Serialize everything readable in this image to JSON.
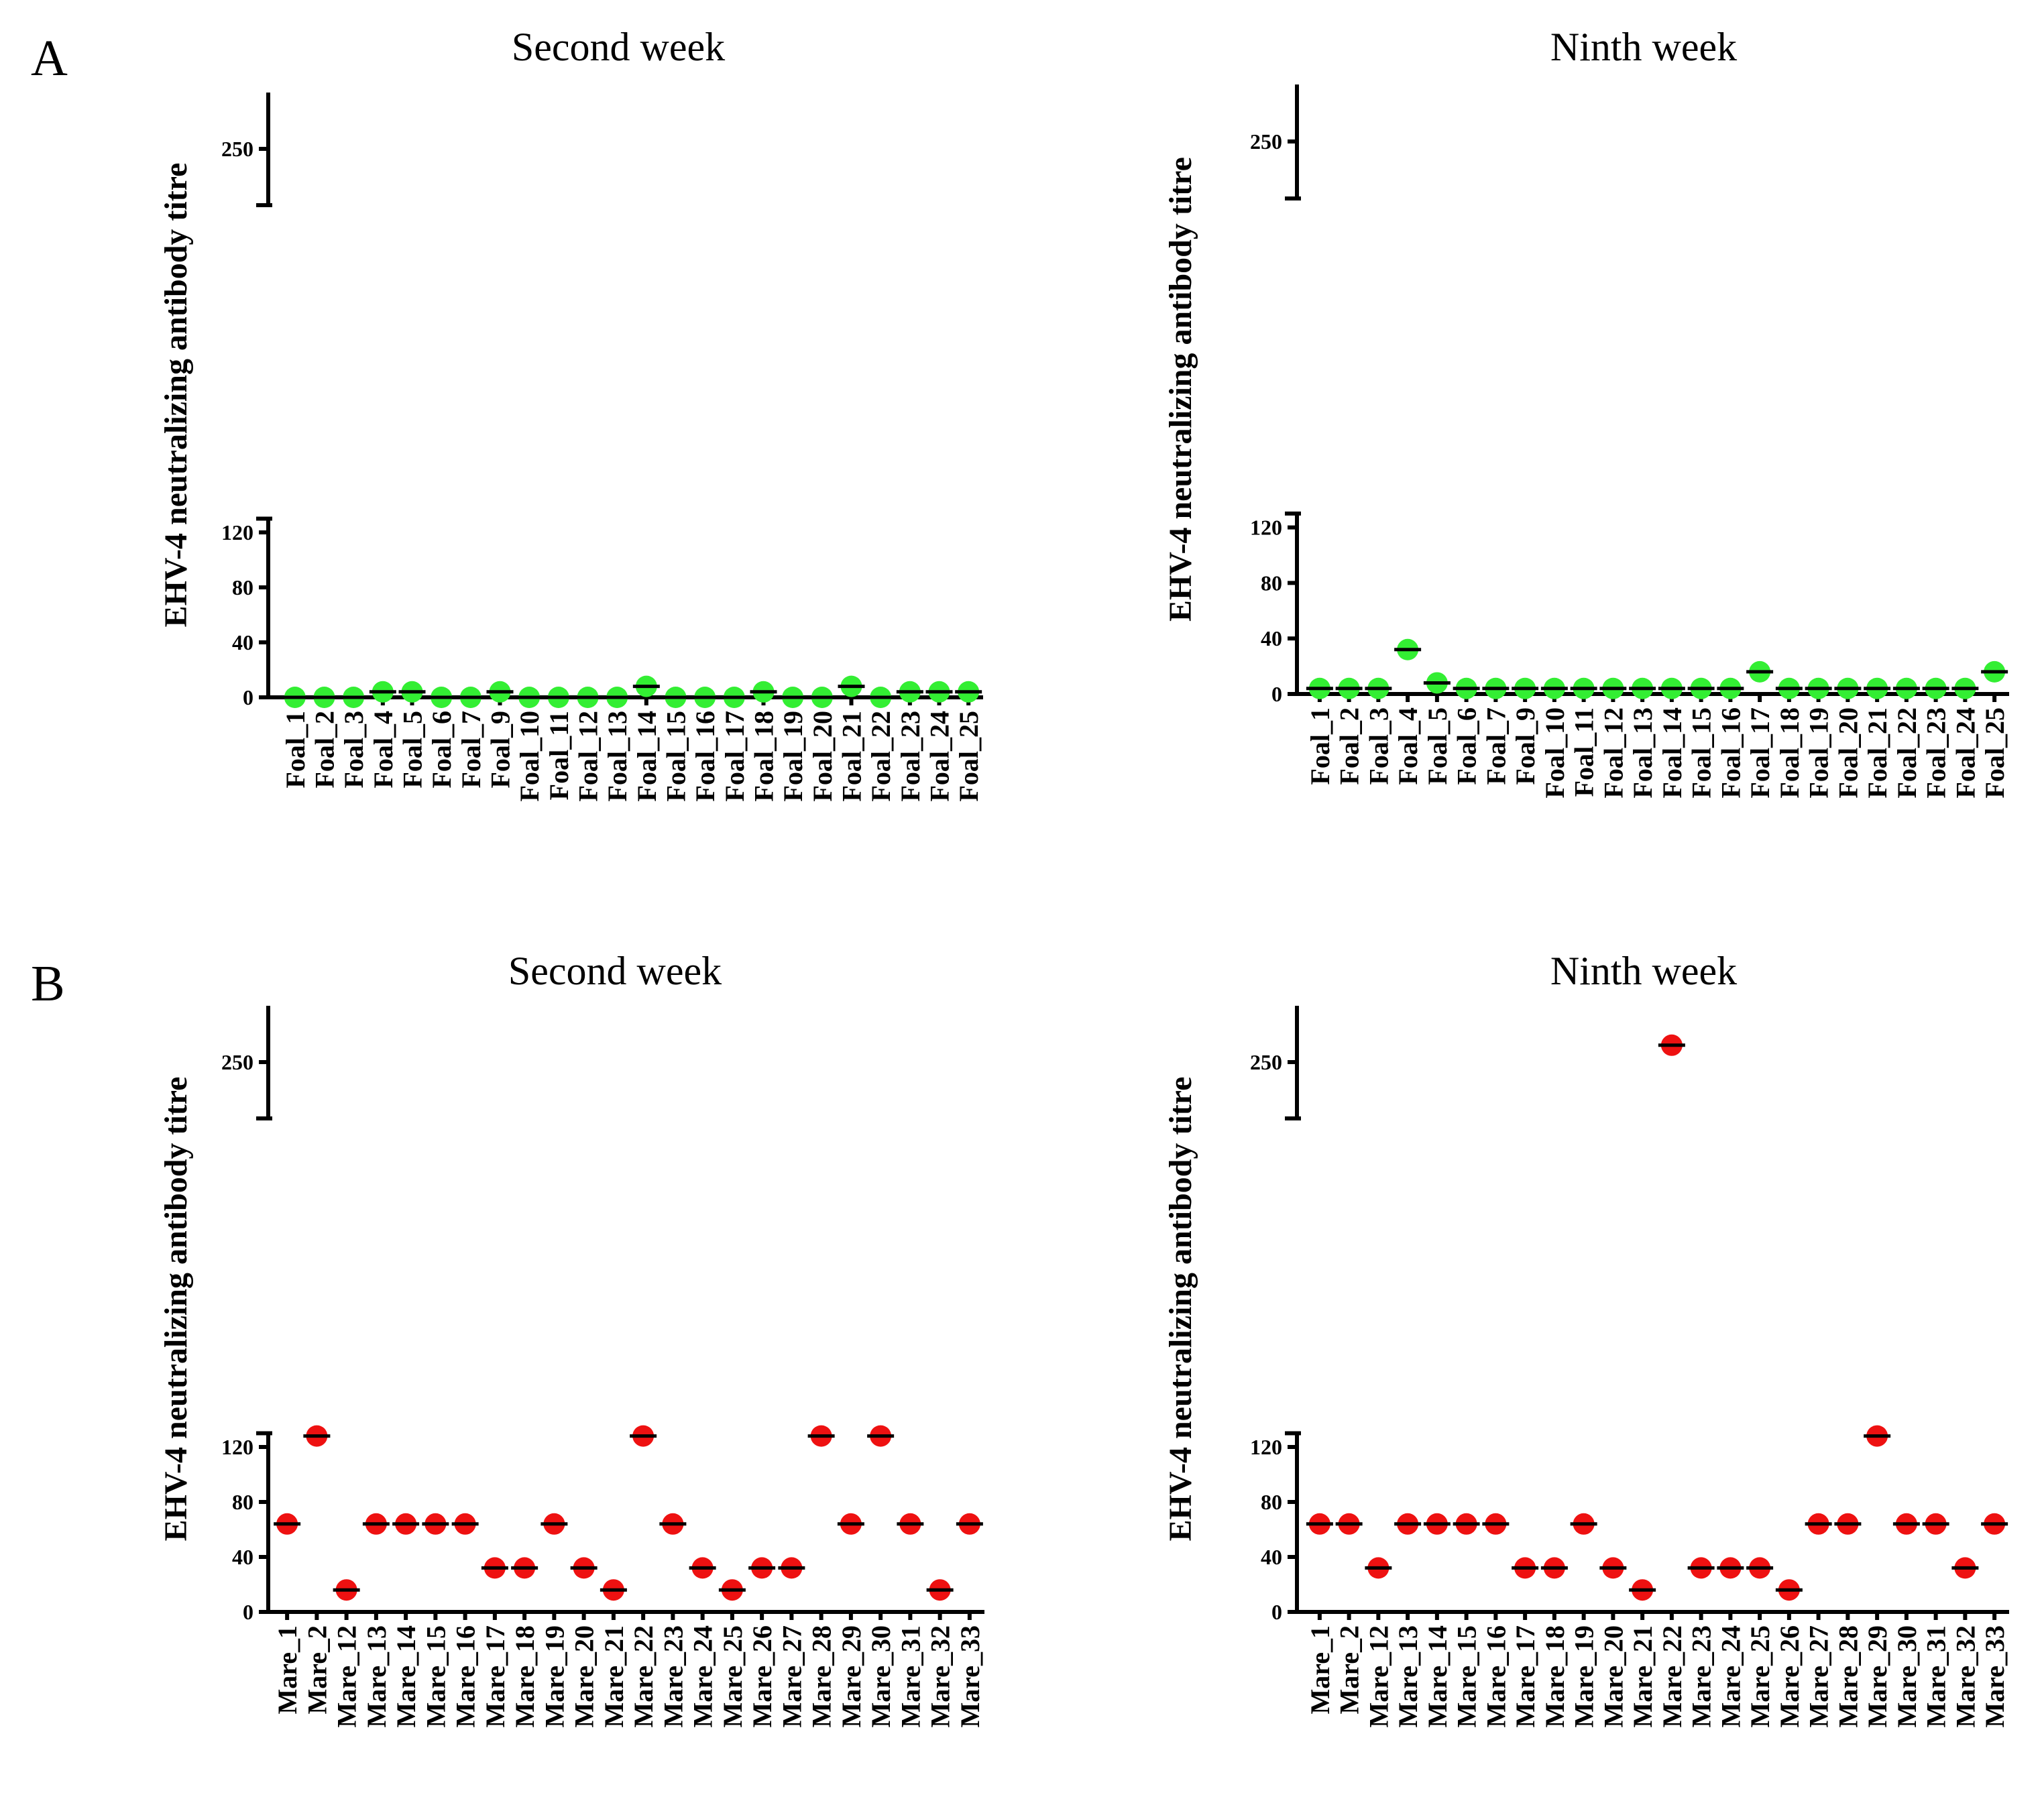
{
  "panels": [
    {
      "letter": "A"
    },
    {
      "letter": "B"
    }
  ],
  "chart_data": [
    {
      "type": "scatter",
      "panel": "A",
      "title": "Second week",
      "ylabel": "EHV-4 neutralizing antibody titre",
      "xlabel": "",
      "color": "#33ee33",
      "y_axis_break": {
        "lower_range": [
          0,
          130
        ],
        "upper_range": [
          230,
          270
        ]
      },
      "yticks": [
        0,
        40,
        80,
        120,
        250
      ],
      "categories": [
        "Foal_1",
        "Foal_2",
        "Foal_3",
        "Foal_4",
        "Foal_5",
        "Foal_6",
        "Foal_7",
        "Foal_9",
        "Foal_10",
        "Foal_11",
        "Foal_12",
        "Foal_13",
        "Foal_14",
        "Foal_15",
        "Foal_16",
        "Foal_17",
        "Foal_18",
        "Foal_19",
        "Foal_20",
        "Foal_21",
        "Foal_22",
        "Foal_23",
        "Foal_24",
        "Foal_25"
      ],
      "values": [
        0,
        0,
        0,
        4,
        4,
        0,
        0,
        4,
        0,
        0,
        0,
        0,
        8,
        0,
        0,
        0,
        4,
        0,
        0,
        8,
        0,
        4,
        4,
        4
      ]
    },
    {
      "type": "scatter",
      "panel": "A",
      "title": "Ninth week",
      "ylabel": "EHV-4 neutralizing antibody titre",
      "xlabel": "",
      "color": "#33ee33",
      "y_axis_break": {
        "lower_range": [
          0,
          130
        ],
        "upper_range": [
          230,
          270
        ]
      },
      "yticks": [
        0,
        40,
        80,
        120,
        250
      ],
      "categories": [
        "Foal_1",
        "Foal_2",
        "Foal_3",
        "Foal_4",
        "Foal_5",
        "Foal_6",
        "Foal_7",
        "Foal_9",
        "Foal_10",
        "Foal_11",
        "Foal_12",
        "Foal_13",
        "Foal_14",
        "Foal_15",
        "Foal_16",
        "Foal_17",
        "Foal_18",
        "Foal_19",
        "Foal_20",
        "Foal_21",
        "Foal_22",
        "Foal_23",
        "Foal_24",
        "Foal_25"
      ],
      "values": [
        4,
        4,
        4,
        32,
        8,
        4,
        4,
        4,
        4,
        4,
        4,
        4,
        4,
        4,
        4,
        16,
        4,
        4,
        4,
        4,
        4,
        4,
        4,
        16
      ]
    },
    {
      "type": "scatter",
      "panel": "B",
      "title": "Second week",
      "ylabel": "EHV-4 neutralizing antibody titre",
      "xlabel": "",
      "color": "#ee1111",
      "y_axis_break": {
        "lower_range": [
          0,
          130
        ],
        "upper_range": [
          230,
          270
        ]
      },
      "yticks": [
        0,
        40,
        80,
        120,
        250
      ],
      "categories": [
        "Mare_1",
        "Mare_2",
        "Mare_12",
        "Mare_13",
        "Mare_14",
        "Mare_15",
        "Mare_16",
        "Mare_17",
        "Mare_18",
        "Mare_19",
        "Mare_20",
        "Mare_21",
        "Mare_22",
        "Mare_23",
        "Mare_24",
        "Mare_25",
        "Mare_26",
        "Mare_27",
        "Mare_28",
        "Mare_29",
        "Mare_30",
        "Mare_31",
        "Mare_32",
        "Mare_33"
      ],
      "values": [
        64,
        128,
        16,
        64,
        64,
        64,
        64,
        32,
        32,
        64,
        32,
        16,
        128,
        64,
        32,
        16,
        32,
        32,
        128,
        64,
        128,
        64,
        16,
        64
      ]
    },
    {
      "type": "scatter",
      "panel": "B",
      "title": "Ninth week",
      "ylabel": "EHV-4 neutralizing antibody titre",
      "xlabel": "",
      "color": "#ee1111",
      "y_axis_break": {
        "lower_range": [
          0,
          130
        ],
        "upper_range": [
          230,
          270
        ]
      },
      "yticks": [
        0,
        40,
        80,
        120,
        250
      ],
      "categories": [
        "Mare_1",
        "Mare_2",
        "Mare_12",
        "Mare_13",
        "Mare_14",
        "Mare_15",
        "Mare_16",
        "Mare_17",
        "Mare_18",
        "Mare_19",
        "Mare_20",
        "Mare_21",
        "Mare_22",
        "Mare_23",
        "Mare_24",
        "Mare_25",
        "Mare_26",
        "Mare_27",
        "Mare_28",
        "Mare_29",
        "Mare_30",
        "Mare_31",
        "Mare_32",
        "Mare_33"
      ],
      "values": [
        64,
        64,
        32,
        64,
        64,
        64,
        64,
        32,
        32,
        64,
        32,
        16,
        256,
        32,
        32,
        32,
        16,
        64,
        64,
        128,
        64,
        64,
        32,
        64
      ]
    }
  ]
}
